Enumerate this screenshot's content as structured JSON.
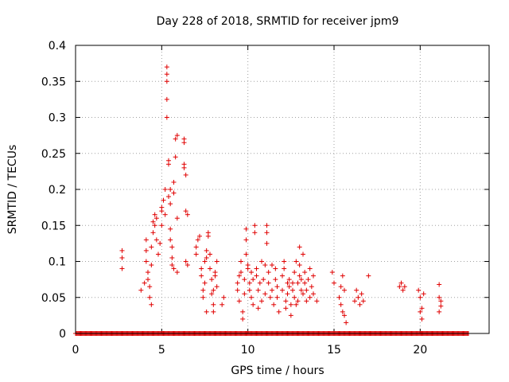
{
  "chart_data": {
    "type": "scatter",
    "title": "Day 228 of 2018, SRMTID for receiver jpm9",
    "xlabel": "GPS time / hours",
    "ylabel": "SRMTID / TECUs",
    "xlim": [
      0,
      24
    ],
    "ylim": [
      0,
      0.4
    ],
    "x_ticks": [
      0,
      5,
      10,
      15,
      20
    ],
    "x_tick_labels": [
      "0",
      "5",
      "10",
      "15",
      "20"
    ],
    "y_ticks": [
      0,
      0.05,
      0.1,
      0.15,
      0.2,
      0.25,
      0.3,
      0.35,
      0.4
    ],
    "y_tick_labels": [
      "0",
      "0.05",
      "0.1",
      "0.15",
      "0.2",
      "0.25",
      "0.3",
      "0.35",
      "0.4"
    ],
    "grid": true,
    "marker": "+",
    "color": "#e00000",
    "series": [
      {
        "name": "SRMTID",
        "points": [
          [
            2.7,
            0.115
          ],
          [
            2.7,
            0.105
          ],
          [
            2.7,
            0.09
          ],
          [
            3.8,
            0.06
          ],
          [
            4.0,
            0.07
          ],
          [
            4.1,
            0.13
          ],
          [
            4.1,
            0.115
          ],
          [
            4.1,
            0.1
          ],
          [
            4.2,
            0.085
          ],
          [
            4.2,
            0.075
          ],
          [
            4.3,
            0.065
          ],
          [
            4.3,
            0.05
          ],
          [
            4.4,
            0.04
          ],
          [
            4.4,
            0.095
          ],
          [
            4.4,
            0.12
          ],
          [
            4.5,
            0.14
          ],
          [
            4.5,
            0.155
          ],
          [
            4.6,
            0.165
          ],
          [
            4.6,
            0.15
          ],
          [
            4.7,
            0.16
          ],
          [
            4.7,
            0.13
          ],
          [
            4.8,
            0.11
          ],
          [
            4.9,
            0.125
          ],
          [
            5.0,
            0.175
          ],
          [
            5.0,
            0.17
          ],
          [
            5.0,
            0.15
          ],
          [
            5.1,
            0.185
          ],
          [
            5.2,
            0.2
          ],
          [
            5.2,
            0.165
          ],
          [
            5.3,
            0.3
          ],
          [
            5.3,
            0.325
          ],
          [
            5.3,
            0.35
          ],
          [
            5.3,
            0.36
          ],
          [
            5.3,
            0.37
          ],
          [
            5.4,
            0.24
          ],
          [
            5.4,
            0.235
          ],
          [
            5.4,
            0.19
          ],
          [
            5.5,
            0.2
          ],
          [
            5.5,
            0.18
          ],
          [
            5.5,
            0.145
          ],
          [
            5.5,
            0.13
          ],
          [
            5.6,
            0.12
          ],
          [
            5.6,
            0.105
          ],
          [
            5.7,
            0.21
          ],
          [
            5.7,
            0.195
          ],
          [
            5.8,
            0.245
          ],
          [
            5.8,
            0.27
          ],
          [
            5.9,
            0.275
          ],
          [
            5.9,
            0.16
          ],
          [
            5.9,
            0.085
          ],
          [
            5.7,
            0.09
          ],
          [
            5.6,
            0.095
          ],
          [
            6.3,
            0.27
          ],
          [
            6.3,
            0.265
          ],
          [
            6.3,
            0.235
          ],
          [
            6.3,
            0.23
          ],
          [
            6.4,
            0.22
          ],
          [
            6.4,
            0.17
          ],
          [
            6.5,
            0.165
          ],
          [
            6.4,
            0.1
          ],
          [
            6.5,
            0.095
          ],
          [
            7.0,
            0.11
          ],
          [
            7.0,
            0.12
          ],
          [
            7.1,
            0.13
          ],
          [
            7.2,
            0.135
          ],
          [
            7.3,
            0.09
          ],
          [
            7.3,
            0.08
          ],
          [
            7.4,
            0.06
          ],
          [
            7.4,
            0.05
          ],
          [
            7.5,
            0.07
          ],
          [
            7.5,
            0.1
          ],
          [
            7.6,
            0.115
          ],
          [
            7.6,
            0.105
          ],
          [
            7.7,
            0.14
          ],
          [
            7.7,
            0.135
          ],
          [
            7.8,
            0.11
          ],
          [
            7.8,
            0.09
          ],
          [
            7.9,
            0.075
          ],
          [
            7.9,
            0.055
          ],
          [
            8.0,
            0.06
          ],
          [
            8.0,
            0.04
          ],
          [
            8.1,
            0.08
          ],
          [
            8.1,
            0.085
          ],
          [
            8.2,
            0.065
          ],
          [
            8.2,
            0.1
          ],
          [
            7.6,
            0.03
          ],
          [
            8.0,
            0.03
          ],
          [
            8.5,
            0.04
          ],
          [
            8.6,
            0.05
          ],
          [
            9.4,
            0.07
          ],
          [
            9.4,
            0.06
          ],
          [
            9.5,
            0.045
          ],
          [
            9.5,
            0.08
          ],
          [
            9.6,
            0.1
          ],
          [
            9.6,
            0.085
          ],
          [
            9.7,
            0.03
          ],
          [
            9.7,
            0.02
          ],
          [
            9.8,
            0.055
          ],
          [
            9.8,
            0.075
          ],
          [
            9.9,
            0.13
          ],
          [
            9.9,
            0.145
          ],
          [
            9.9,
            0.11
          ],
          [
            10.0,
            0.095
          ],
          [
            10.0,
            0.09
          ],
          [
            10.1,
            0.06
          ],
          [
            10.1,
            0.07
          ],
          [
            10.2,
            0.085
          ],
          [
            10.2,
            0.05
          ],
          [
            10.3,
            0.04
          ],
          [
            10.3,
            0.075
          ],
          [
            10.4,
            0.14
          ],
          [
            10.4,
            0.15
          ],
          [
            10.5,
            0.08
          ],
          [
            10.5,
            0.09
          ],
          [
            10.6,
            0.06
          ],
          [
            10.6,
            0.035
          ],
          [
            10.7,
            0.07
          ],
          [
            10.8,
            0.1
          ],
          [
            10.8,
            0.045
          ],
          [
            10.9,
            0.075
          ],
          [
            11.0,
            0.095
          ],
          [
            11.0,
            0.055
          ],
          [
            11.1,
            0.15
          ],
          [
            11.1,
            0.14
          ],
          [
            11.1,
            0.125
          ],
          [
            11.2,
            0.085
          ],
          [
            11.2,
            0.07
          ],
          [
            11.3,
            0.05
          ],
          [
            11.4,
            0.095
          ],
          [
            11.4,
            0.06
          ],
          [
            11.5,
            0.04
          ],
          [
            11.6,
            0.075
          ],
          [
            11.6,
            0.09
          ],
          [
            11.7,
            0.065
          ],
          [
            11.7,
            0.05
          ],
          [
            11.8,
            0.03
          ],
          [
            12.0,
            0.06
          ],
          [
            12.0,
            0.08
          ],
          [
            12.1,
            0.1
          ],
          [
            12.1,
            0.09
          ],
          [
            12.2,
            0.035
          ],
          [
            12.2,
            0.045
          ],
          [
            12.3,
            0.07
          ],
          [
            12.3,
            0.055
          ],
          [
            12.4,
            0.075
          ],
          [
            12.4,
            0.065
          ],
          [
            12.5,
            0.04
          ],
          [
            12.5,
            0.025
          ],
          [
            12.6,
            0.06
          ],
          [
            12.6,
            0.07
          ],
          [
            12.7,
            0.085
          ],
          [
            12.7,
            0.05
          ],
          [
            12.8,
            0.1
          ],
          [
            12.8,
            0.04
          ],
          [
            12.9,
            0.07
          ],
          [
            12.9,
            0.045
          ],
          [
            13.0,
            0.08
          ],
          [
            13.0,
            0.095
          ],
          [
            13.0,
            0.12
          ],
          [
            13.1,
            0.075
          ],
          [
            13.1,
            0.06
          ],
          [
            13.2,
            0.11
          ],
          [
            13.2,
            0.055
          ],
          [
            13.3,
            0.07
          ],
          [
            13.3,
            0.085
          ],
          [
            13.4,
            0.06
          ],
          [
            13.4,
            0.045
          ],
          [
            13.5,
            0.075
          ],
          [
            13.6,
            0.09
          ],
          [
            13.6,
            0.05
          ],
          [
            13.7,
            0.065
          ],
          [
            13.8,
            0.08
          ],
          [
            13.8,
            0.055
          ],
          [
            14.0,
            0.045
          ],
          [
            14.9,
            0.085
          ],
          [
            15.0,
            0.07
          ],
          [
            15.3,
            0.05
          ],
          [
            15.4,
            0.065
          ],
          [
            15.4,
            0.04
          ],
          [
            15.5,
            0.08
          ],
          [
            15.5,
            0.03
          ],
          [
            15.6,
            0.06
          ],
          [
            15.6,
            0.025
          ],
          [
            15.7,
            0.015
          ],
          [
            16.2,
            0.045
          ],
          [
            16.3,
            0.06
          ],
          [
            16.4,
            0.05
          ],
          [
            16.5,
            0.04
          ],
          [
            16.6,
            0.055
          ],
          [
            16.7,
            0.045
          ],
          [
            17.0,
            0.08
          ],
          [
            18.8,
            0.065
          ],
          [
            18.9,
            0.07
          ],
          [
            19.0,
            0.06
          ],
          [
            19.1,
            0.065
          ],
          [
            19.9,
            0.06
          ],
          [
            20.0,
            0.05
          ],
          [
            20.0,
            0.03
          ],
          [
            20.1,
            0.02
          ],
          [
            20.1,
            0.035
          ],
          [
            20.2,
            0.055
          ],
          [
            21.1,
            0.068
          ],
          [
            21.1,
            0.05
          ],
          [
            21.2,
            0.045
          ],
          [
            21.1,
            0.03
          ],
          [
            21.2,
            0.038
          ]
        ],
        "zero_band": [
          0.0,
          22.8
        ]
      }
    ]
  }
}
